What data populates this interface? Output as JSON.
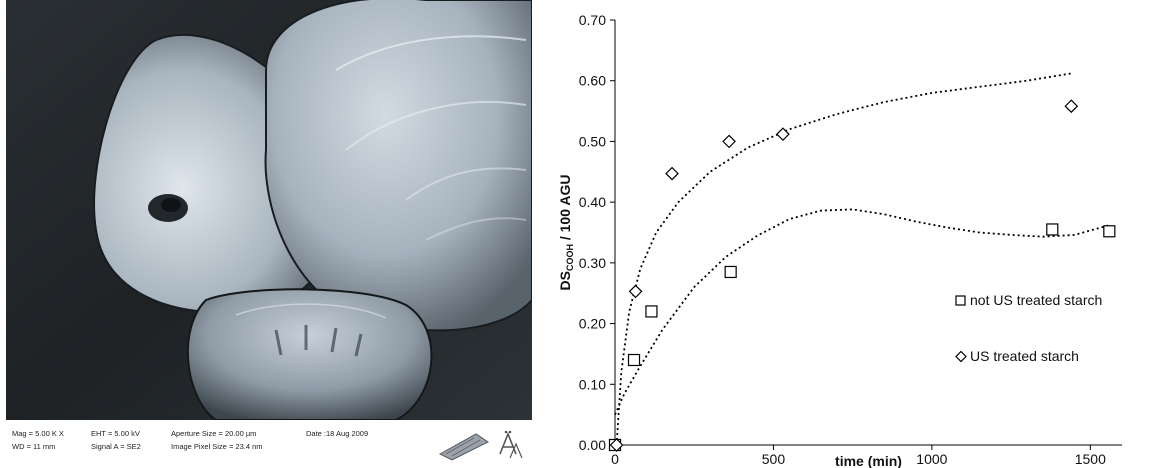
{
  "sem": {
    "info": {
      "mag": "Mag =  5.00 K X",
      "wd": "WD =   11 mm",
      "eht": "EHT =  5.00 kV",
      "signal": "Signal A = SE2",
      "aperture": "Aperture Size = 20.00 µm",
      "pixel": "Image Pixel Size = 23.4 nm",
      "date": "Date :18 Aug 2009"
    }
  },
  "chart_data": {
    "type": "scatter",
    "xlabel": "time (min)",
    "ylabel_main": "DS",
    "ylabel_sub": "COOH",
    "ylabel_rest": " / 100 AGU",
    "xlim": [
      0,
      1600
    ],
    "ylim": [
      0,
      0.7
    ],
    "xticks": [
      0,
      500,
      1000,
      1500
    ],
    "xtick_labels": [
      "0",
      "500",
      "1000",
      "1500"
    ],
    "yticks": [
      0,
      0.1,
      0.2,
      0.3,
      0.4,
      0.5,
      0.6,
      0.7
    ],
    "ytick_labels": [
      "0.00",
      "0.10",
      "0.20",
      "0.30",
      "0.40",
      "0.50",
      "0.60",
      "0.70"
    ],
    "legend_position": "lower-right",
    "series": [
      {
        "name": "not US treated starch",
        "marker": "square",
        "x": [
          0,
          60,
          115,
          365,
          1380,
          1560
        ],
        "y": [
          0.0,
          0.14,
          0.22,
          0.285,
          0.355,
          0.352
        ],
        "trend_x": [
          0,
          30,
          80,
          150,
          250,
          350,
          450,
          550,
          650,
          750,
          850,
          950,
          1050,
          1150,
          1250,
          1350,
          1450,
          1560
        ],
        "trend_y": [
          0.05,
          0.085,
          0.13,
          0.19,
          0.26,
          0.31,
          0.345,
          0.372,
          0.386,
          0.388,
          0.38,
          0.368,
          0.358,
          0.35,
          0.346,
          0.343,
          0.346,
          0.362
        ]
      },
      {
        "name": "US treated starch",
        "marker": "diamond",
        "x": [
          5,
          65,
          180,
          360,
          530,
          1440
        ],
        "y": [
          0.0,
          0.253,
          0.447,
          0.5,
          0.512,
          0.558
        ],
        "trend_x": [
          5,
          20,
          45,
          80,
          130,
          200,
          300,
          420,
          550,
          700,
          850,
          1000,
          1150,
          1300,
          1440
        ],
        "trend_y": [
          0.0,
          0.12,
          0.22,
          0.29,
          0.35,
          0.4,
          0.45,
          0.49,
          0.52,
          0.545,
          0.565,
          0.58,
          0.59,
          0.6,
          0.612
        ]
      }
    ]
  }
}
